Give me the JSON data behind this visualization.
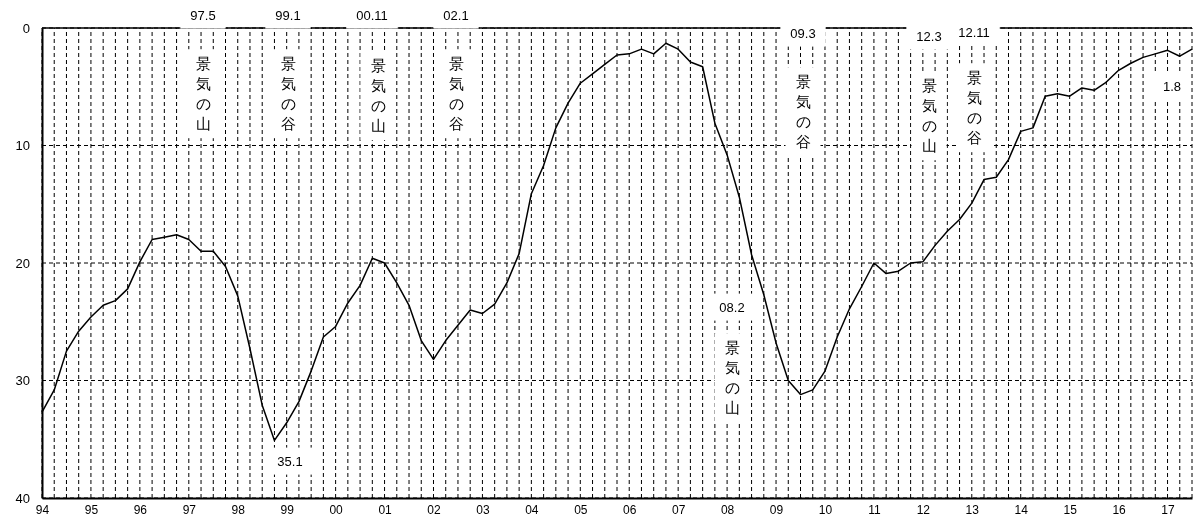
{
  "chart_data": {
    "type": "line",
    "x": [
      1994,
      1994.25,
      1994.5,
      1994.75,
      1995,
      1995.25,
      1995.5,
      1995.75,
      1996,
      1996.25,
      1996.5,
      1996.75,
      1997,
      1997.25,
      1997.5,
      1997.75,
      1998,
      1998.25,
      1998.5,
      1998.75,
      1999,
      1999.25,
      1999.5,
      1999.75,
      2000,
      2000.25,
      2000.5,
      2000.75,
      2001,
      2001.25,
      2001.5,
      2001.75,
      2002,
      2002.25,
      2002.5,
      2002.75,
      2003,
      2003.25,
      2003.5,
      2003.75,
      2004,
      2004.25,
      2004.5,
      2004.75,
      2005,
      2005.25,
      2005.5,
      2005.75,
      2006,
      2006.25,
      2006.5,
      2006.75,
      2007,
      2007.25,
      2007.5,
      2007.75,
      2008,
      2008.25,
      2008.5,
      2008.75,
      2009,
      2009.25,
      2009.5,
      2009.75,
      2010,
      2010.25,
      2010.5,
      2010.75,
      2011,
      2011.25,
      2011.5,
      2011.75,
      2012,
      2012.25,
      2012.5,
      2012.75,
      2013,
      2013.25,
      2013.5,
      2013.75,
      2014,
      2014.25,
      2014.5,
      2014.75,
      2015,
      2015.25,
      2015.5,
      2015.75,
      2016,
      2016.25,
      2016.5,
      2016.75,
      2017,
      2017.25,
      2017.5
    ],
    "series": [
      {
        "color": "#000000",
        "values": [
          32.7,
          30.8,
          27.5,
          25.8,
          24.6,
          23.6,
          23.2,
          22.2,
          19.9,
          18.0,
          17.8,
          17.6,
          18.0,
          19.0,
          19.0,
          20.3,
          22.8,
          27.3,
          32.1,
          35.1,
          33.6,
          31.8,
          29.2,
          26.3,
          25.4,
          23.4,
          21.9,
          19.6,
          20.0,
          21.7,
          23.6,
          26.6,
          28.2,
          26.6,
          25.3,
          24.0,
          24.3,
          23.5,
          21.7,
          19.2,
          14.1,
          11.7,
          8.5,
          6.4,
          4.7,
          3.9,
          3.1,
          2.3,
          2.2,
          1.8,
          2.2,
          1.3,
          1.8,
          2.9,
          3.3,
          8.1,
          10.8,
          14.4,
          19.3,
          22.7,
          26.8,
          30.0,
          31.2,
          30.8,
          29.2,
          26.3,
          23.9,
          22.0,
          20.0,
          20.9,
          20.7,
          20.0,
          19.9,
          18.5,
          17.3,
          16.3,
          14.9,
          12.9,
          12.7,
          11.2,
          8.8,
          8.5,
          5.8,
          5.6,
          5.8,
          5.1,
          5.3,
          4.6,
          3.6,
          3.0,
          2.5,
          2.2,
          1.9,
          2.4,
          1.8
        ]
      }
    ],
    "xlim": [
      1994,
      2017.5
    ],
    "xticks": [
      {
        "value": 1994,
        "label": "94"
      },
      {
        "value": 1994.25,
        "label": null
      },
      {
        "value": 1994.5,
        "label": null
      },
      {
        "value": 1994.75,
        "label": null
      },
      {
        "value": 1995,
        "label": "95"
      },
      {
        "value": 1995.25,
        "label": null
      },
      {
        "value": 1995.5,
        "label": null
      },
      {
        "value": 1995.75,
        "label": null
      },
      {
        "value": 1996,
        "label": "96"
      },
      {
        "value": 1996.25,
        "label": null
      },
      {
        "value": 1996.5,
        "label": null
      },
      {
        "value": 1996.75,
        "label": null
      },
      {
        "value": 1997,
        "label": "97"
      },
      {
        "value": 1997.25,
        "label": null
      },
      {
        "value": 1997.5,
        "label": null
      },
      {
        "value": 1997.75,
        "label": null
      },
      {
        "value": 1998,
        "label": "98"
      },
      {
        "value": 1998.25,
        "label": null
      },
      {
        "value": 1998.5,
        "label": null
      },
      {
        "value": 1998.75,
        "label": null
      },
      {
        "value": 1999,
        "label": "99"
      },
      {
        "value": 1999.25,
        "label": null
      },
      {
        "value": 1999.5,
        "label": null
      },
      {
        "value": 1999.75,
        "label": null
      },
      {
        "value": 2000,
        "label": "00"
      },
      {
        "value": 2000.25,
        "label": null
      },
      {
        "value": 2000.5,
        "label": null
      },
      {
        "value": 2000.75,
        "label": null
      },
      {
        "value": 2001,
        "label": "01"
      },
      {
        "value": 2001.25,
        "label": null
      },
      {
        "value": 2001.5,
        "label": null
      },
      {
        "value": 2001.75,
        "label": null
      },
      {
        "value": 2002,
        "label": "02"
      },
      {
        "value": 2002.25,
        "label": null
      },
      {
        "value": 2002.5,
        "label": null
      },
      {
        "value": 2002.75,
        "label": null
      },
      {
        "value": 2003,
        "label": "03"
      },
      {
        "value": 2003.25,
        "label": null
      },
      {
        "value": 2003.5,
        "label": null
      },
      {
        "value": 2003.75,
        "label": null
      },
      {
        "value": 2004,
        "label": "04"
      },
      {
        "value": 2004.25,
        "label": null
      },
      {
        "value": 2004.5,
        "label": null
      },
      {
        "value": 2004.75,
        "label": null
      },
      {
        "value": 2005,
        "label": "05"
      },
      {
        "value": 2005.25,
        "label": null
      },
      {
        "value": 2005.5,
        "label": null
      },
      {
        "value": 2005.75,
        "label": null
      },
      {
        "value": 2006,
        "label": "06"
      },
      {
        "value": 2006.25,
        "label": null
      },
      {
        "value": 2006.5,
        "label": null
      },
      {
        "value": 2006.75,
        "label": null
      },
      {
        "value": 2007,
        "label": "07"
      },
      {
        "value": 2007.25,
        "label": null
      },
      {
        "value": 2007.5,
        "label": null
      },
      {
        "value": 2007.75,
        "label": null
      },
      {
        "value": 2008,
        "label": "08"
      },
      {
        "value": 2008.25,
        "label": null
      },
      {
        "value": 2008.5,
        "label": null
      },
      {
        "value": 2008.75,
        "label": null
      },
      {
        "value": 2009,
        "label": "09"
      },
      {
        "value": 2009.25,
        "label": null
      },
      {
        "value": 2009.5,
        "label": null
      },
      {
        "value": 2009.75,
        "label": null
      },
      {
        "value": 2010,
        "label": "10"
      },
      {
        "value": 2010.25,
        "label": null
      },
      {
        "value": 2010.5,
        "label": null
      },
      {
        "value": 2010.75,
        "label": null
      },
      {
        "value": 2011,
        "label": "11"
      },
      {
        "value": 2011.25,
        "label": null
      },
      {
        "value": 2011.5,
        "label": null
      },
      {
        "value": 2011.75,
        "label": null
      },
      {
        "value": 2012,
        "label": "12"
      },
      {
        "value": 2012.25,
        "label": null
      },
      {
        "value": 2012.5,
        "label": null
      },
      {
        "value": 2012.75,
        "label": null
      },
      {
        "value": 2013,
        "label": "13"
      },
      {
        "value": 2013.25,
        "label": null
      },
      {
        "value": 2013.5,
        "label": null
      },
      {
        "value": 2013.75,
        "label": null
      },
      {
        "value": 2014,
        "label": "14"
      },
      {
        "value": 2014.25,
        "label": null
      },
      {
        "value": 2014.5,
        "label": null
      },
      {
        "value": 2014.75,
        "label": null
      },
      {
        "value": 2015,
        "label": "15"
      },
      {
        "value": 2015.25,
        "label": null
      },
      {
        "value": 2015.5,
        "label": null
      },
      {
        "value": 2015.75,
        "label": null
      },
      {
        "value": 2016,
        "label": "16"
      },
      {
        "value": 2016.25,
        "label": null
      },
      {
        "value": 2016.5,
        "label": null
      },
      {
        "value": 2016.75,
        "label": null
      },
      {
        "value": 2017,
        "label": "17"
      },
      {
        "value": 2017.25,
        "label": null
      },
      {
        "value": 2017.5,
        "label": null
      }
    ],
    "ylim": [
      40,
      0
    ],
    "yticks": [
      0,
      10,
      20,
      30,
      40
    ],
    "grid": true,
    "line_style": "solid",
    "annotations": [
      "97.5",
      "景気の山",
      "99.1",
      "景気の谷",
      "00.11",
      "景気の山",
      "02.1",
      "景気の谷",
      "35.1",
      "08.2",
      "景気の山",
      "09.3",
      "景気の谷",
      "12.3",
      "景気の山",
      "12.11",
      "景気の谷",
      "1.8"
    ]
  }
}
